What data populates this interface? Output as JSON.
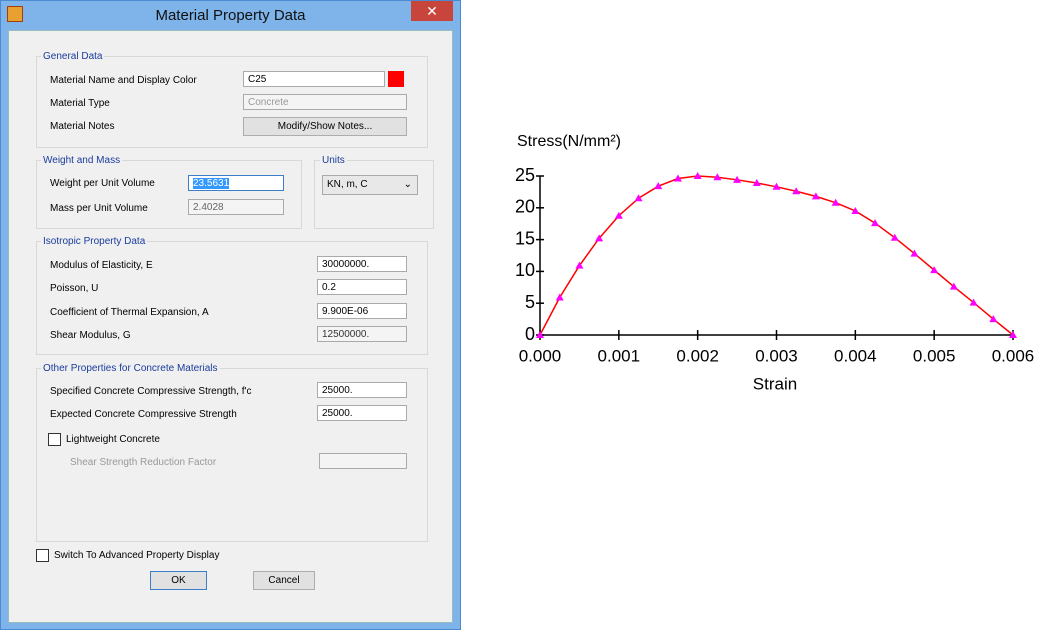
{
  "dialog": {
    "title": "Material Property Data",
    "general": {
      "heading": "General Data",
      "name_label": "Material Name and Display Color",
      "name_value": "C25",
      "display_color": "#ff0000",
      "type_label": "Material Type",
      "type_value": "Concrete",
      "notes_label": "Material Notes",
      "notes_button": "Modify/Show Notes..."
    },
    "weight": {
      "heading": "Weight and Mass",
      "weight_label": "Weight per Unit Volume",
      "weight_value": "23.5631",
      "mass_label": "Mass per Unit Volume",
      "mass_value": "2.4028"
    },
    "units": {
      "heading": "Units",
      "value": "KN, m, C"
    },
    "isotropic": {
      "heading": "Isotropic Property Data",
      "rows": [
        {
          "label": "Modulus of Elasticity,  E",
          "value": "30000000."
        },
        {
          "label": "Poisson,  U",
          "value": "0.2"
        },
        {
          "label": "Coefficient of Thermal Expansion,  A",
          "value": "9.900E-06"
        },
        {
          "label": "Shear Modulus,  G",
          "value": "12500000."
        }
      ]
    },
    "concrete": {
      "heading": "Other Properties for Concrete Materials",
      "rows": [
        {
          "label": "Specified Concrete Compressive Strength, f'c",
          "value": "25000."
        },
        {
          "label": "Expected Concrete Compressive Strength",
          "value": "25000."
        }
      ],
      "lightweight": "Lightweight Concrete",
      "shear_label": "Shear Strength Reduction Factor"
    },
    "advanced": "Switch To Advanced Property Display",
    "ok": "OK",
    "cancel": "Cancel"
  },
  "chart_data": {
    "type": "line",
    "y_label": "Stress(N/mm²)",
    "x_label": "Strain",
    "x": [
      0,
      0.00025,
      0.0005,
      0.00075,
      0.001,
      0.00125,
      0.0015,
      0.00175,
      0.002,
      0.00225,
      0.0025,
      0.00275,
      0.003,
      0.00325,
      0.0035,
      0.00375,
      0.004,
      0.00425,
      0.0045,
      0.00475,
      0.005,
      0.00525,
      0.0055,
      0.00575,
      0.006
    ],
    "series": [
      {
        "color": "#ff00ff",
        "line_color": "#ff0000",
        "values": [
          0,
          5.9,
          10.9,
          15.2,
          18.75,
          21.5,
          23.4,
          24.6,
          25,
          24.8,
          24.4,
          23.9,
          23.3,
          22.6,
          21.8,
          20.8,
          19.5,
          17.6,
          15.3,
          12.8,
          10.2,
          7.6,
          5.1,
          2.5,
          0
        ]
      }
    ],
    "xlim": [
      0,
      0.006
    ],
    "ylim": [
      0,
      25
    ],
    "xticks": [
      {
        "value": 0,
        "label": "0.000"
      },
      {
        "value": 0.001,
        "label": "0.001"
      },
      {
        "value": 0.002,
        "label": "0.002"
      },
      {
        "value": 0.003,
        "label": "0.003"
      },
      {
        "value": 0.004,
        "label": "0.004"
      },
      {
        "value": 0.005,
        "label": "0.005"
      },
      {
        "value": 0.006,
        "label": "0.006"
      }
    ],
    "yticks": [
      0,
      5,
      10,
      15,
      20,
      25
    ]
  }
}
